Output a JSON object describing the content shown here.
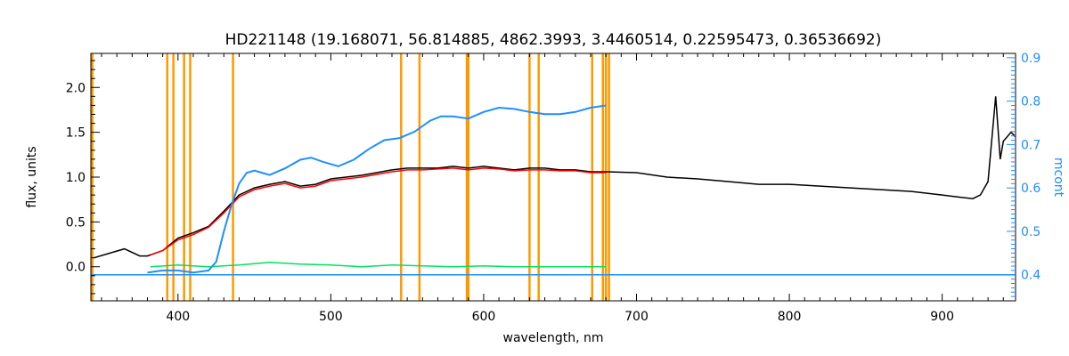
{
  "chart_data": {
    "type": "line",
    "title": "HD221148    (19.168071, 56.814885, 4862.3993, 3.4460514, 0.22595473, 0.36536692)",
    "xlabel": "wavelength, nm",
    "ylabel": "flux, units",
    "y2label": "mcont",
    "xlim": [
      343,
      948
    ],
    "ylim": [
      -0.38,
      2.38
    ],
    "y2lim": [
      0.34,
      0.91
    ],
    "xticks": [
      "400",
      "500",
      "600",
      "700",
      "800",
      "900"
    ],
    "xtick_values": [
      400,
      500,
      600,
      700,
      800,
      900
    ],
    "yticks": [
      "0.0",
      "0.5",
      "1.0",
      "1.5",
      "2.0"
    ],
    "ytick_values": [
      0.0,
      0.5,
      1.0,
      1.5,
      2.0
    ],
    "y2ticks": [
      "0.4",
      "0.5",
      "0.6",
      "0.7",
      "0.8",
      "0.9"
    ],
    "y2tick_values": [
      0.4,
      0.5,
      0.6,
      0.7,
      0.8,
      0.9
    ],
    "grid": false,
    "vlines": {
      "color": "#ff9900",
      "x": [
        344,
        393,
        397,
        404,
        408,
        436,
        546,
        558,
        589,
        590,
        630,
        636,
        671,
        678,
        680,
        682
      ]
    },
    "series": [
      {
        "role": "observed",
        "color": "#000000",
        "axis": "left",
        "x": [
          345,
          355,
          365,
          375,
          380,
          390,
          400,
          410,
          420,
          430,
          440,
          450,
          460,
          470,
          480,
          490,
          500,
          510,
          520,
          530,
          540,
          550,
          560,
          570,
          580,
          590,
          600,
          610,
          620,
          630,
          640,
          650,
          660,
          670,
          680,
          700,
          720,
          740,
          760,
          780,
          800,
          820,
          840,
          860,
          880,
          900,
          910,
          920,
          925,
          930,
          935,
          938,
          940,
          945,
          948
        ],
        "y": [
          0.1,
          0.15,
          0.2,
          0.12,
          0.12,
          0.18,
          0.32,
          0.38,
          0.45,
          0.62,
          0.8,
          0.88,
          0.92,
          0.95,
          0.9,
          0.92,
          0.98,
          1.0,
          1.02,
          1.05,
          1.08,
          1.1,
          1.1,
          1.1,
          1.12,
          1.1,
          1.12,
          1.1,
          1.08,
          1.1,
          1.1,
          1.08,
          1.08,
          1.06,
          1.06,
          1.05,
          1.0,
          0.98,
          0.95,
          0.92,
          0.92,
          0.9,
          0.88,
          0.86,
          0.84,
          0.8,
          0.78,
          0.76,
          0.8,
          0.95,
          1.9,
          1.2,
          1.4,
          1.5,
          1.45
        ]
      },
      {
        "role": "model",
        "color": "#ff0000",
        "axis": "left",
        "x": [
          382,
          390,
          400,
          410,
          420,
          430,
          440,
          450,
          460,
          470,
          480,
          490,
          500,
          510,
          520,
          530,
          540,
          550,
          560,
          570,
          580,
          590,
          600,
          610,
          620,
          630,
          640,
          650,
          660,
          670,
          680
        ],
        "y": [
          0.13,
          0.18,
          0.3,
          0.36,
          0.44,
          0.6,
          0.78,
          0.86,
          0.9,
          0.93,
          0.88,
          0.9,
          0.96,
          0.98,
          1.0,
          1.03,
          1.06,
          1.08,
          1.08,
          1.09,
          1.1,
          1.08,
          1.1,
          1.09,
          1.07,
          1.08,
          1.08,
          1.07,
          1.07,
          1.05,
          1.05
        ]
      },
      {
        "role": "residual",
        "color": "#00e060",
        "axis": "left",
        "x": [
          382,
          400,
          420,
          440,
          460,
          480,
          500,
          520,
          540,
          560,
          580,
          600,
          620,
          640,
          660,
          680
        ],
        "y": [
          0.0,
          0.02,
          0.0,
          0.02,
          0.05,
          0.03,
          0.02,
          0.0,
          0.02,
          0.01,
          0.0,
          0.01,
          0.0,
          0.0,
          0.0,
          0.0
        ]
      },
      {
        "role": "mcont",
        "color": "#1e8fff",
        "axis": "right",
        "x": [
          380,
          390,
          400,
          410,
          420,
          425,
          430,
          435,
          440,
          445,
          450,
          455,
          460,
          470,
          480,
          487,
          495,
          505,
          515,
          525,
          535,
          545,
          555,
          565,
          572,
          580,
          590,
          600,
          610,
          620,
          630,
          640,
          650,
          660,
          670,
          680
        ],
        "y": [
          0.405,
          0.41,
          0.41,
          0.405,
          0.41,
          0.43,
          0.5,
          0.56,
          0.61,
          0.635,
          0.64,
          0.635,
          0.63,
          0.645,
          0.665,
          0.67,
          0.66,
          0.65,
          0.665,
          0.69,
          0.71,
          0.715,
          0.73,
          0.755,
          0.765,
          0.765,
          0.76,
          0.775,
          0.785,
          0.782,
          0.775,
          0.77,
          0.77,
          0.775,
          0.785,
          0.79
        ]
      },
      {
        "role": "mcont-baseline",
        "color": "#1e8fff",
        "axis": "right",
        "x": [
          343,
          380,
          681,
          948
        ],
        "y": [
          0.4,
          0.4,
          0.4,
          0.4
        ]
      }
    ]
  }
}
